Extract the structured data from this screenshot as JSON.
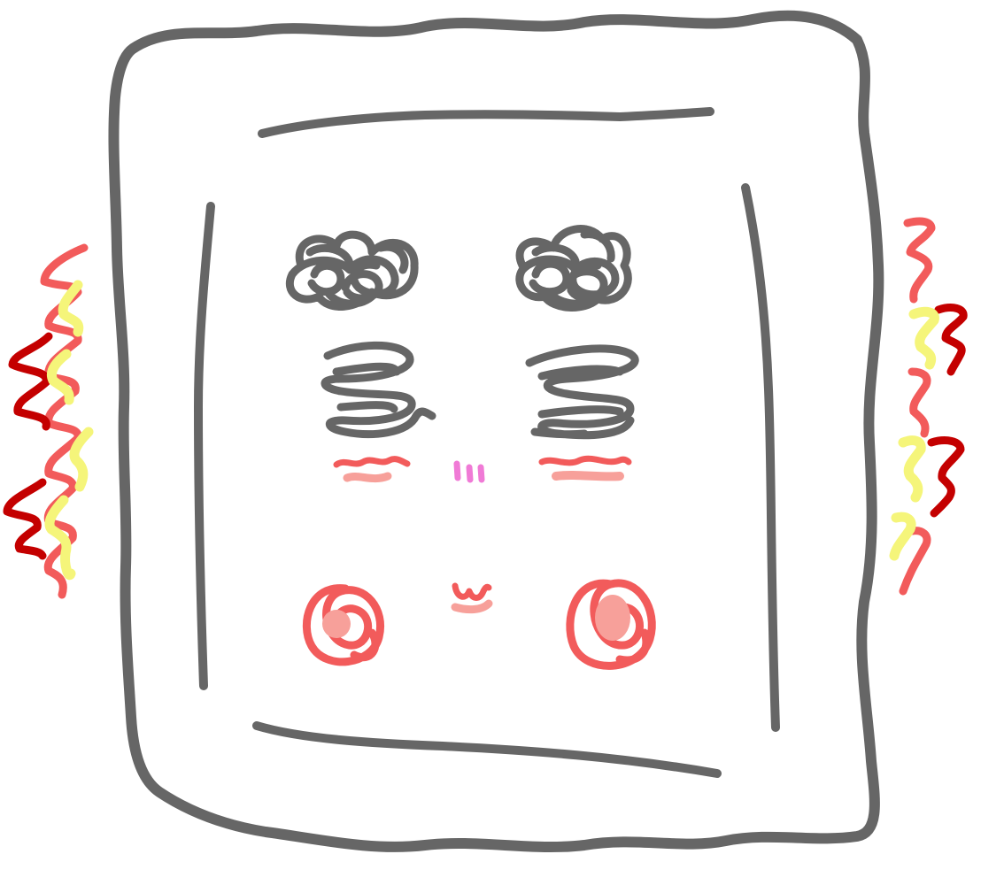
{
  "drawing": {
    "subject": "scribbled-face-in-frame",
    "colors": {
      "outline": "#666666",
      "eye": "#666666",
      "blush": "#f25b5b",
      "blush_fill": "#f7a09a",
      "nose": "#f07ad6",
      "mouth": "#f25b5b",
      "shake_red": "#f25b5b",
      "shake_dark_red": "#c40000",
      "shake_yellow": "#f5f57a"
    },
    "icons": {
      "left_eye": "tangled-scribble-icon",
      "right_eye": "tangled-scribble-icon",
      "left_cheek": "spiral-icon",
      "right_cheek": "spiral-icon",
      "left_shake": "zigzag-shake-icon",
      "right_shake": "zigzag-shake-icon"
    }
  }
}
